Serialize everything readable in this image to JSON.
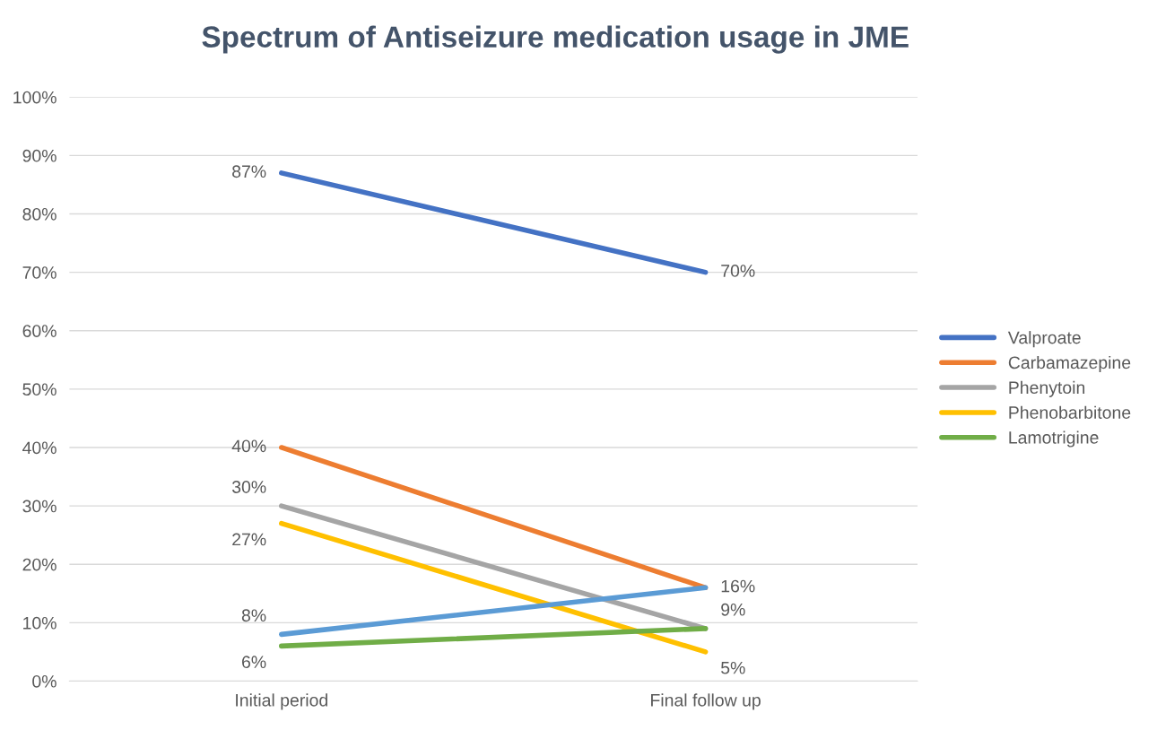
{
  "chart_data": {
    "type": "line",
    "title": "Spectrum of Antiseizure medication usage in JME",
    "categories": [
      "Initial period",
      "Final follow up"
    ],
    "series": [
      {
        "name": "Valproate",
        "color": "#4472c4",
        "values": [
          87,
          70
        ],
        "value_labels": [
          "87%",
          "70%"
        ]
      },
      {
        "name": "Carbamazepine",
        "color": "#ed7d31",
        "values": [
          40,
          16
        ],
        "value_labels": [
          "40%",
          "16%"
        ]
      },
      {
        "name": "Phenytoin",
        "color": "#a5a5a5",
        "values": [
          30,
          9
        ],
        "value_labels": [
          "30%",
          "9%"
        ]
      },
      {
        "name": "Phenobarbitone",
        "color": "#ffc000",
        "values": [
          27,
          5
        ],
        "value_labels": [
          "27%",
          "5%"
        ]
      },
      {
        "color": "#5b9bd5",
        "values": [
          8,
          16
        ],
        "value_labels": [
          "8%",
          null
        ]
      },
      {
        "name": "Lamotrigine",
        "color": "#70ad47",
        "values": [
          6,
          9
        ],
        "value_labels": [
          "6%",
          null
        ]
      }
    ],
    "ylim": [
      0,
      100
    ],
    "yticks": [
      {
        "value": 0,
        "label": "0%"
      },
      {
        "value": 10,
        "label": "10%"
      },
      {
        "value": 20,
        "label": "20%"
      },
      {
        "value": 30,
        "label": "30%"
      },
      {
        "value": 40,
        "label": "40%"
      },
      {
        "value": 50,
        "label": "50%"
      },
      {
        "value": 60,
        "label": "60%"
      },
      {
        "value": 70,
        "label": "70%"
      },
      {
        "value": 80,
        "label": "80%"
      },
      {
        "value": 90,
        "label": "90%"
      },
      {
        "value": 100,
        "label": "100%"
      }
    ],
    "grid": "y",
    "legend": "right",
    "marker": "none",
    "line_style": "solid"
  }
}
